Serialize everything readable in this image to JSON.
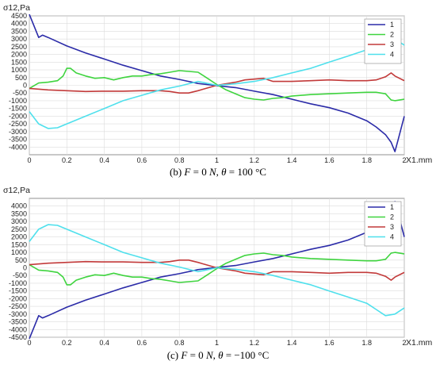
{
  "chart_data": [
    {
      "type": "line",
      "caption": {
        "prefix": "(b) ",
        "F": "F",
        "f_eq": " = 0 ",
        "N": "N",
        "sep": ", ",
        "theta": "θ",
        "t_eq": " = 100 °C"
      },
      "ylabel": "σ12,Pa",
      "xlabel": "X1,mm",
      "xlim": [
        0,
        2
      ],
      "ylim": [
        -4500,
        4500
      ],
      "x_ticks": [
        0,
        0.2,
        0.4,
        0.6,
        0.8,
        1,
        1.2,
        1.4,
        1.6,
        1.8,
        2
      ],
      "x_tick_labels": [
        "0",
        "0.2",
        "0.4",
        "0.6",
        "0.8",
        "1",
        "1.2",
        "1.4",
        "1.6",
        "1.8",
        "2"
      ],
      "y_ticks": [
        4500,
        4000,
        3500,
        3000,
        2500,
        2000,
        1500,
        1000,
        500,
        0,
        -500,
        -1000,
        -1500,
        -2000,
        -2500,
        -3000,
        -3500,
        -4000
      ],
      "y_tick_labels": [
        "4500",
        "4000",
        "3500",
        "3000",
        "2500",
        "2000",
        "1500",
        "1000",
        "500",
        "0",
        "-500",
        "-1000",
        "-1500",
        "-2000",
        "-2500",
        "-3000",
        "-3500",
        "-4000"
      ],
      "grid": true,
      "legend_position": "top-right",
      "series": [
        {
          "name": "1",
          "color": "#2b2ba8",
          "x": [
            0,
            0.03,
            0.05,
            0.07,
            0.1,
            0.2,
            0.3,
            0.4,
            0.5,
            0.6,
            0.7,
            0.8,
            0.9,
            1,
            1.1,
            1.2,
            1.3,
            1.4,
            1.5,
            1.6,
            1.7,
            1.8,
            1.85,
            1.9,
            1.93,
            1.95,
            1.97,
            2
          ],
          "y": [
            4600,
            3700,
            3100,
            3250,
            3100,
            2550,
            2100,
            1700,
            1300,
            950,
            600,
            380,
            120,
            -20,
            -150,
            -380,
            -600,
            -900,
            -1200,
            -1450,
            -1800,
            -2300,
            -2700,
            -3200,
            -3700,
            -4300,
            -3400,
            -2000
          ]
        },
        {
          "name": "2",
          "color": "#3fd43f",
          "x": [
            0,
            0.05,
            0.1,
            0.15,
            0.18,
            0.2,
            0.22,
            0.25,
            0.3,
            0.35,
            0.4,
            0.45,
            0.5,
            0.55,
            0.6,
            0.65,
            0.7,
            0.75,
            0.8,
            0.85,
            0.9,
            0.95,
            1,
            1.05,
            1.1,
            1.15,
            1.2,
            1.25,
            1.3,
            1.35,
            1.4,
            1.5,
            1.6,
            1.7,
            1.8,
            1.85,
            1.9,
            1.93,
            1.95,
            2
          ],
          "y": [
            -200,
            150,
            200,
            300,
            600,
            1100,
            1100,
            800,
            600,
            450,
            500,
            350,
            500,
            600,
            600,
            700,
            750,
            850,
            950,
            900,
            850,
            450,
            50,
            -300,
            -550,
            -800,
            -900,
            -950,
            -850,
            -800,
            -700,
            -600,
            -550,
            -500,
            -450,
            -450,
            -550,
            -950,
            -1000,
            -900
          ]
        },
        {
          "name": "3",
          "color": "#c23a3a",
          "x": [
            0,
            0.1,
            0.2,
            0.3,
            0.4,
            0.5,
            0.6,
            0.7,
            0.75,
            0.8,
            0.85,
            0.9,
            1,
            1.05,
            1.1,
            1.15,
            1.2,
            1.25,
            1.3,
            1.4,
            1.5,
            1.6,
            1.7,
            1.8,
            1.85,
            1.9,
            1.93,
            1.95,
            2
          ],
          "y": [
            -200,
            -300,
            -350,
            -400,
            -380,
            -380,
            -350,
            -350,
            -400,
            -500,
            -500,
            -350,
            0,
            100,
            200,
            350,
            400,
            450,
            250,
            250,
            300,
            350,
            300,
            300,
            350,
            550,
            800,
            600,
            300
          ]
        },
        {
          "name": "4",
          "color": "#4fe0ec",
          "x": [
            0,
            0.05,
            0.1,
            0.15,
            0.2,
            0.3,
            0.4,
            0.5,
            0.6,
            0.7,
            0.8,
            0.9,
            1,
            1.1,
            1.2,
            1.3,
            1.4,
            1.5,
            1.6,
            1.7,
            1.8,
            1.85,
            1.9,
            1.95,
            2
          ],
          "y": [
            -1700,
            -2500,
            -2800,
            -2750,
            -2500,
            -2000,
            -1500,
            -1000,
            -650,
            -300,
            -50,
            250,
            0,
            100,
            250,
            500,
            800,
            1100,
            1500,
            1900,
            2300,
            2700,
            3100,
            3000,
            2600
          ]
        }
      ]
    },
    {
      "type": "line",
      "caption": {
        "prefix": "(c) ",
        "F": "F",
        "f_eq": " = 0 ",
        "N": "N",
        "sep": ", ",
        "theta": "θ",
        "t_eq": " = −100 °C"
      },
      "ylabel": "σ12,Pa",
      "xlabel": "X1,mm",
      "xlim": [
        0,
        2
      ],
      "ylim": [
        -4500,
        4500
      ],
      "x_ticks": [
        0,
        0.2,
        0.4,
        0.6,
        0.8,
        1,
        1.2,
        1.4,
        1.6,
        1.8,
        2
      ],
      "x_tick_labels": [
        "0",
        "0.2",
        "0.4",
        "0.6",
        "0.8",
        "1",
        "1.2",
        "1.4",
        "1.6",
        "1.8",
        "2"
      ],
      "y_ticks": [
        4000,
        3500,
        3000,
        2500,
        2000,
        1500,
        1000,
        500,
        0,
        -500,
        -1000,
        -1500,
        -2000,
        -2500,
        -3000,
        -3500,
        -4000,
        -4500
      ],
      "y_tick_labels": [
        "4000",
        "3500",
        "3000",
        "2500",
        "2000",
        "1500",
        "1000",
        "500",
        "0",
        "-500",
        "-1000",
        "-1500",
        "-2000",
        "-2500",
        "-3000",
        "-3500",
        "-4000",
        "-4500"
      ],
      "grid": true,
      "legend_position": "top-right",
      "series": [
        {
          "name": "1",
          "color": "#2b2ba8",
          "x": [
            0,
            0.03,
            0.05,
            0.07,
            0.1,
            0.2,
            0.3,
            0.4,
            0.5,
            0.6,
            0.7,
            0.8,
            0.9,
            1,
            1.1,
            1.2,
            1.3,
            1.4,
            1.5,
            1.6,
            1.7,
            1.8,
            1.85,
            1.9,
            1.93,
            1.95,
            1.97,
            2
          ],
          "y": [
            -4600,
            -3700,
            -3100,
            -3250,
            -3100,
            -2550,
            -2100,
            -1700,
            -1300,
            -950,
            -600,
            -380,
            -120,
            20,
            150,
            380,
            600,
            900,
            1200,
            1450,
            1800,
            2300,
            2700,
            3200,
            3700,
            4300,
            3400,
            2000
          ]
        },
        {
          "name": "2",
          "color": "#3fd43f",
          "x": [
            0,
            0.05,
            0.1,
            0.15,
            0.18,
            0.2,
            0.22,
            0.25,
            0.3,
            0.35,
            0.4,
            0.45,
            0.5,
            0.55,
            0.6,
            0.65,
            0.7,
            0.75,
            0.8,
            0.85,
            0.9,
            0.95,
            1,
            1.05,
            1.1,
            1.15,
            1.2,
            1.25,
            1.3,
            1.35,
            1.4,
            1.5,
            1.6,
            1.7,
            1.8,
            1.85,
            1.9,
            1.93,
            1.95,
            2
          ],
          "y": [
            200,
            -150,
            -200,
            -300,
            -600,
            -1100,
            -1100,
            -800,
            -600,
            -450,
            -500,
            -350,
            -500,
            -600,
            -600,
            -700,
            -750,
            -850,
            -950,
            -900,
            -850,
            -450,
            -50,
            300,
            550,
            800,
            900,
            950,
            850,
            800,
            700,
            600,
            550,
            500,
            450,
            450,
            550,
            950,
            1000,
            900
          ]
        },
        {
          "name": "3",
          "color": "#c23a3a",
          "x": [
            0,
            0.1,
            0.2,
            0.3,
            0.4,
            0.5,
            0.6,
            0.7,
            0.75,
            0.8,
            0.85,
            0.9,
            1,
            1.05,
            1.1,
            1.15,
            1.2,
            1.25,
            1.3,
            1.4,
            1.5,
            1.6,
            1.7,
            1.8,
            1.85,
            1.9,
            1.93,
            1.95,
            2
          ],
          "y": [
            200,
            300,
            350,
            400,
            380,
            380,
            350,
            350,
            400,
            500,
            500,
            350,
            0,
            -100,
            -200,
            -350,
            -400,
            -450,
            -250,
            -250,
            -300,
            -350,
            -300,
            -300,
            -350,
            -550,
            -800,
            -600,
            -300
          ]
        },
        {
          "name": "4",
          "color": "#4fe0ec",
          "x": [
            0,
            0.05,
            0.1,
            0.15,
            0.2,
            0.3,
            0.4,
            0.5,
            0.6,
            0.7,
            0.8,
            0.9,
            1,
            1.1,
            1.2,
            1.3,
            1.4,
            1.5,
            1.6,
            1.7,
            1.8,
            1.85,
            1.9,
            1.95,
            2
          ],
          "y": [
            1700,
            2500,
            2800,
            2750,
            2500,
            2000,
            1500,
            1000,
            650,
            300,
            50,
            -250,
            0,
            -100,
            -250,
            -500,
            -800,
            -1100,
            -1500,
            -1900,
            -2300,
            -2700,
            -3100,
            -3000,
            -2600
          ]
        }
      ]
    }
  ]
}
